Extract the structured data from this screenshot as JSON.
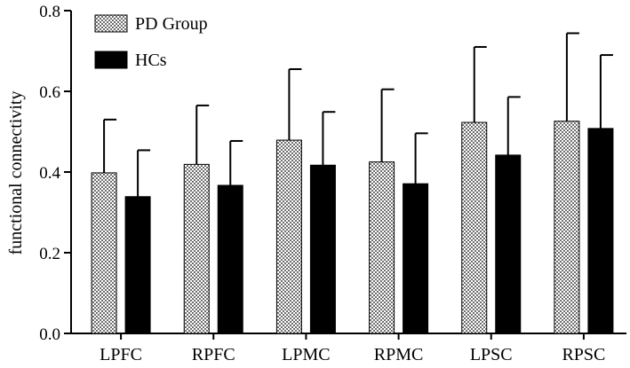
{
  "chart_data": {
    "type": "bar",
    "title": "",
    "xlabel": "",
    "ylabel": "functional connectivity",
    "ylim": [
      0,
      0.8
    ],
    "yticks": [
      "0.0",
      "0.2",
      "0.4",
      "0.6",
      "0.8"
    ],
    "ytick_values": [
      0,
      0.2,
      0.4,
      0.6,
      0.8
    ],
    "categories": [
      "LPFC",
      "RPFC",
      "LPMC",
      "RPMC",
      "LPSC",
      "RPSC"
    ],
    "series": [
      {
        "name": "PD Group",
        "pattern": "checkered",
        "values": [
          0.398,
          0.419,
          0.479,
          0.425,
          0.523,
          0.526
        ],
        "error": [
          0.132,
          0.146,
          0.176,
          0.18,
          0.187,
          0.218
        ]
      },
      {
        "name": "HCs",
        "pattern": "solid",
        "values": [
          0.339,
          0.367,
          0.417,
          0.371,
          0.442,
          0.508
        ],
        "error": [
          0.115,
          0.11,
          0.132,
          0.125,
          0.144,
          0.182
        ]
      }
    ],
    "legend_position": "top-left",
    "error_bars": "upper only",
    "grid": false,
    "colors": {
      "pd_fill": "#7a7a7a",
      "pd_check": "#ffffff",
      "hc_fill": "#000000",
      "axis": "#000000"
    }
  }
}
